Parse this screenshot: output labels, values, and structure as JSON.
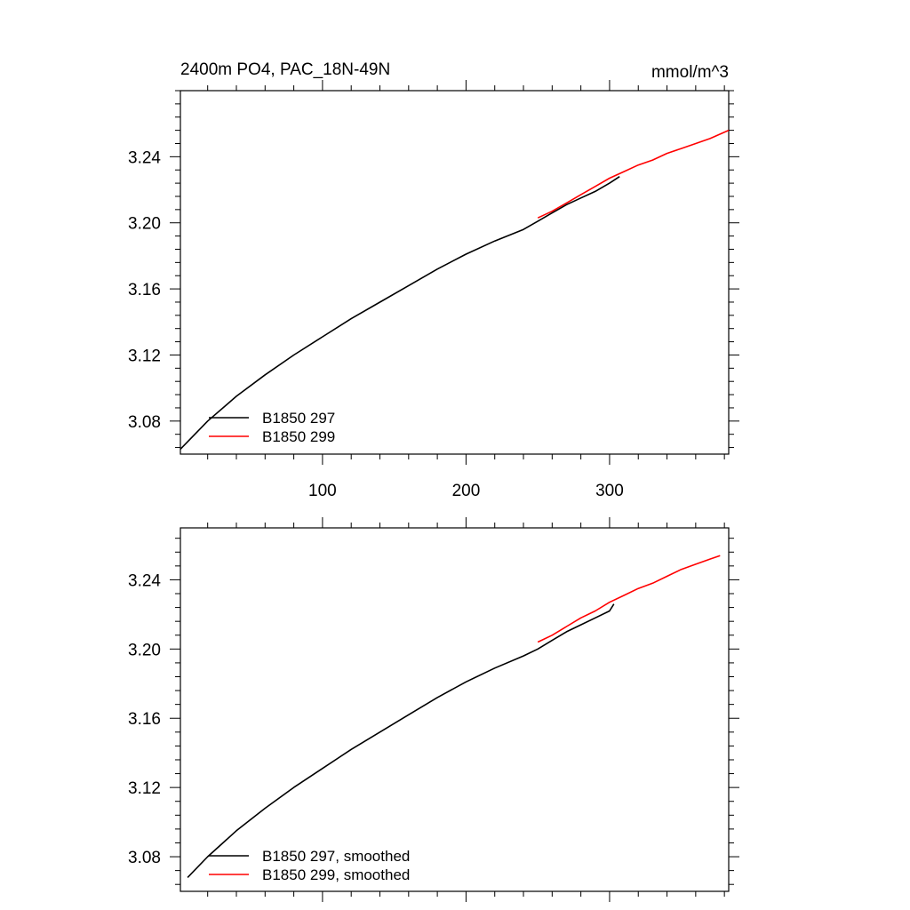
{
  "chart_data": [
    {
      "type": "line",
      "title": "2400m PO4, PAC_18N-49N",
      "units": "mmol/m^3",
      "xlim": [
        1,
        383
      ],
      "ylim": [
        3.06,
        3.28
      ],
      "xticks": [
        100,
        200,
        300
      ],
      "xtick_labels": [
        "100",
        "200",
        "300"
      ],
      "yticks": [
        3.08,
        3.12,
        3.16,
        3.2,
        3.24
      ],
      "ytick_labels": [
        "3.08",
        "3.12",
        "3.16",
        "3.20",
        "3.24"
      ],
      "legend_position": "bottom-left",
      "colors": [
        "#000000",
        "#ff0000"
      ],
      "series": [
        {
          "name": "B1850 297",
          "x": [
            1,
            20,
            40,
            60,
            80,
            100,
            120,
            140,
            160,
            180,
            200,
            220,
            240,
            250,
            260,
            270,
            280,
            290,
            300,
            307
          ],
          "y": [
            3.063,
            3.08,
            3.095,
            3.108,
            3.12,
            3.131,
            3.142,
            3.152,
            3.162,
            3.172,
            3.181,
            3.189,
            3.196,
            3.201,
            3.206,
            3.211,
            3.215,
            3.219,
            3.224,
            3.228
          ]
        },
        {
          "name": "B1850 299",
          "x": [
            250,
            260,
            270,
            280,
            290,
            300,
            310,
            320,
            330,
            340,
            350,
            360,
            370,
            383
          ],
          "y": [
            3.203,
            3.207,
            3.212,
            3.217,
            3.222,
            3.227,
            3.231,
            3.235,
            3.238,
            3.242,
            3.245,
            3.248,
            3.251,
            3.256
          ]
        }
      ]
    },
    {
      "type": "line",
      "xlim": [
        1,
        383
      ],
      "ylim": [
        3.06,
        3.27
      ],
      "xticks": [
        100,
        200,
        300
      ],
      "yticks": [
        3.08,
        3.12,
        3.16,
        3.2,
        3.24
      ],
      "ytick_labels": [
        "3.08",
        "3.12",
        "3.16",
        "3.20",
        "3.24"
      ],
      "legend_position": "bottom-left",
      "colors": [
        "#000000",
        "#ff0000"
      ],
      "series": [
        {
          "name": "B1850 297, smoothed",
          "x": [
            6,
            20,
            40,
            60,
            80,
            100,
            120,
            140,
            160,
            180,
            200,
            220,
            240,
            250,
            260,
            270,
            280,
            290,
            300,
            303
          ],
          "y": [
            3.068,
            3.08,
            3.095,
            3.108,
            3.12,
            3.131,
            3.142,
            3.152,
            3.162,
            3.172,
            3.181,
            3.189,
            3.196,
            3.2,
            3.205,
            3.21,
            3.214,
            3.218,
            3.222,
            3.226
          ]
        },
        {
          "name": "B1850 299, smoothed",
          "x": [
            250,
            260,
            270,
            280,
            290,
            300,
            310,
            320,
            330,
            340,
            350,
            360,
            370,
            377
          ],
          "y": [
            3.204,
            3.208,
            3.213,
            3.218,
            3.222,
            3.227,
            3.231,
            3.235,
            3.238,
            3.242,
            3.246,
            3.249,
            3.252,
            3.254
          ]
        }
      ]
    }
  ]
}
